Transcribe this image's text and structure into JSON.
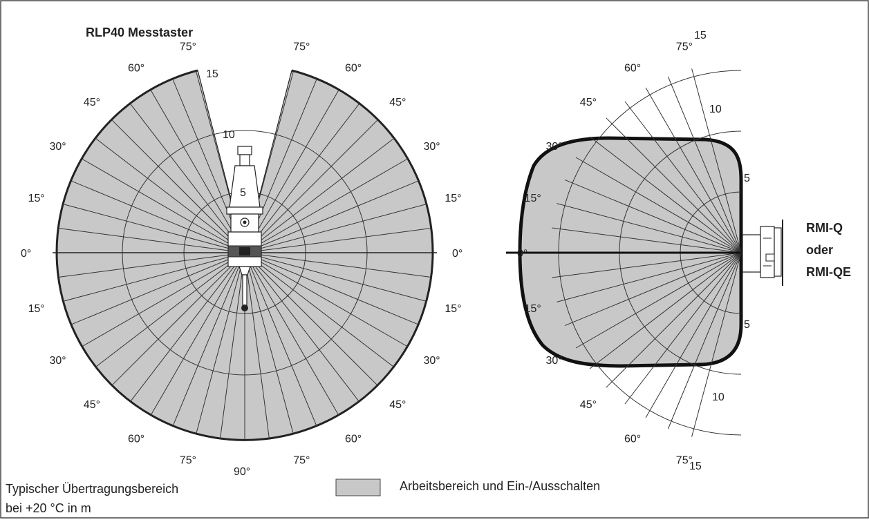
{
  "title": "RLP40 Messtaster",
  "left_diagram": {
    "angle_labels_left": [
      "75°",
      "60°",
      "45°",
      "30°",
      "15°",
      "0°",
      "15°",
      "30°",
      "45°",
      "60°",
      "75°"
    ],
    "angle_labels_right": [
      "75°",
      "60°",
      "45°",
      "30°",
      "15°",
      "0°",
      "15°",
      "30°",
      "45°",
      "60°",
      "75°"
    ],
    "bottom_label": "90°",
    "range_labels": [
      "5",
      "10",
      "15"
    ]
  },
  "right_diagram": {
    "angle_labels": [
      "75°",
      "60°",
      "45°",
      "30°",
      "15°",
      "0°",
      "15°",
      "30°",
      "45°",
      "60°",
      "75°"
    ],
    "range_labels_top": [
      "5",
      "10",
      "15"
    ],
    "range_labels_bottom": [
      "5",
      "10",
      "15"
    ]
  },
  "receiver_label": [
    "RMI-Q",
    "oder",
    "RMI-QE"
  ],
  "legend": {
    "fill_color": "#c8c8c8",
    "text": "Arbeitsbereich und Ein-/Ausschalten"
  },
  "footnote": [
    "Typischer Übertragungsbereich",
    "bei +20 °C in m"
  ]
}
